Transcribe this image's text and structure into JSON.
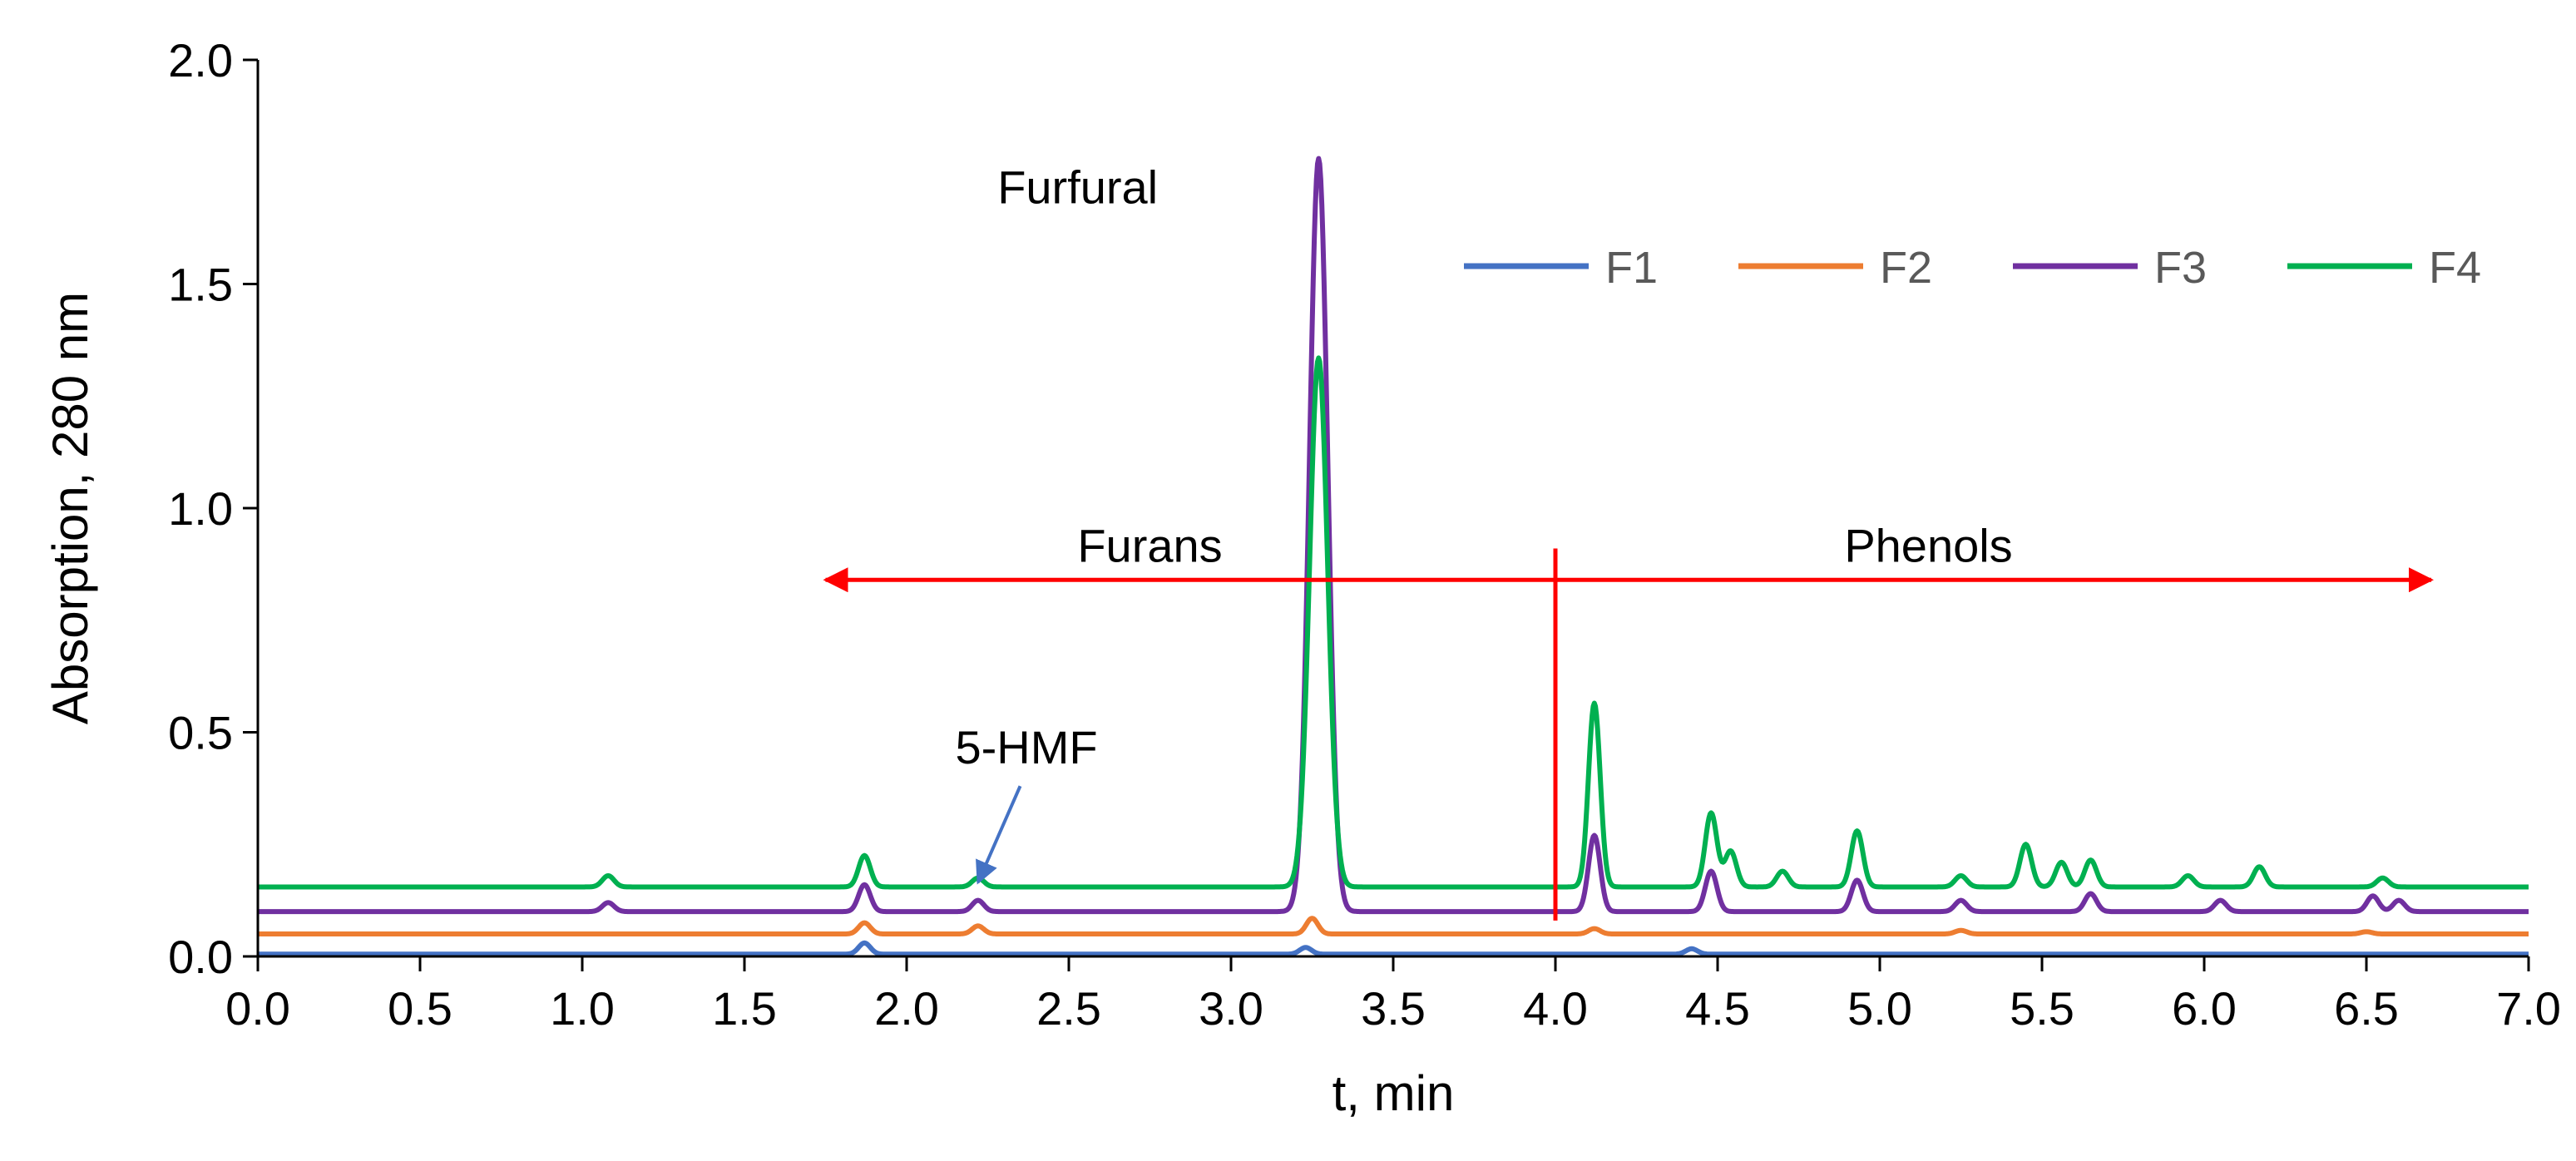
{
  "chart_data": {
    "type": "line",
    "xlabel": "t, min",
    "ylabel": "Absorption, 280 nm",
    "xlim": [
      0,
      7
    ],
    "ylim": [
      0,
      2
    ],
    "x_ticks": [
      "0.0",
      "0.5",
      "1.0",
      "1.5",
      "2.0",
      "2.5",
      "3.0",
      "3.5",
      "4.0",
      "4.5",
      "5.0",
      "5.5",
      "6.0",
      "6.5",
      "7.0"
    ],
    "y_ticks": [
      "0.0",
      "0.5",
      "1.0",
      "1.5",
      "2.0"
    ],
    "grid": false,
    "legend_position": "top-right",
    "series": [
      {
        "name": "F1",
        "color": "#4472c4",
        "baseline": 0.005,
        "peaks": [
          [
            1.87,
            0.025
          ],
          [
            3.23,
            0.015
          ],
          [
            4.42,
            0.012
          ]
        ]
      },
      {
        "name": "F2",
        "color": "#ed7d31",
        "baseline": 0.05,
        "peaks": [
          [
            1.87,
            0.025
          ],
          [
            2.22,
            0.018
          ],
          [
            3.25,
            0.035
          ],
          [
            4.12,
            0.012
          ],
          [
            5.25,
            0.008
          ],
          [
            6.5,
            0.005
          ]
        ]
      },
      {
        "name": "F3",
        "color": "#7030a0",
        "baseline": 0.1,
        "peaks": [
          [
            1.08,
            0.02
          ],
          [
            1.87,
            0.06
          ],
          [
            2.22,
            0.025
          ],
          [
            3.27,
            1.68
          ],
          [
            4.12,
            0.17
          ],
          [
            4.48,
            0.09
          ],
          [
            4.93,
            0.07
          ],
          [
            5.25,
            0.025
          ],
          [
            5.65,
            0.04
          ],
          [
            6.05,
            0.025
          ],
          [
            6.52,
            0.035
          ],
          [
            6.6,
            0.025
          ]
        ]
      },
      {
        "name": "F4",
        "color": "#00b050",
        "baseline": 0.155,
        "peaks": [
          [
            1.08,
            0.025
          ],
          [
            1.87,
            0.07
          ],
          [
            2.22,
            0.02
          ],
          [
            3.27,
            1.18
          ],
          [
            4.12,
            0.41
          ],
          [
            4.48,
            0.165
          ],
          [
            4.54,
            0.08
          ],
          [
            4.7,
            0.035
          ],
          [
            4.93,
            0.125
          ],
          [
            5.25,
            0.025
          ],
          [
            5.45,
            0.095
          ],
          [
            5.56,
            0.055
          ],
          [
            5.65,
            0.06
          ],
          [
            5.95,
            0.025
          ],
          [
            6.17,
            0.045
          ],
          [
            6.55,
            0.02
          ]
        ]
      }
    ],
    "annotations": {
      "furfural": "Furfural",
      "hmf": "5-HMF",
      "furans": "Furans",
      "phenols": "Phenols"
    },
    "regions": {
      "furans": [
        1.75,
        4.0
      ],
      "phenols": [
        4.0,
        6.7
      ],
      "divider_x": 4.0,
      "arrow_y": 0.84
    },
    "annotation_color": "#ff0000",
    "hmf_arrow_color": "#4472c4"
  }
}
